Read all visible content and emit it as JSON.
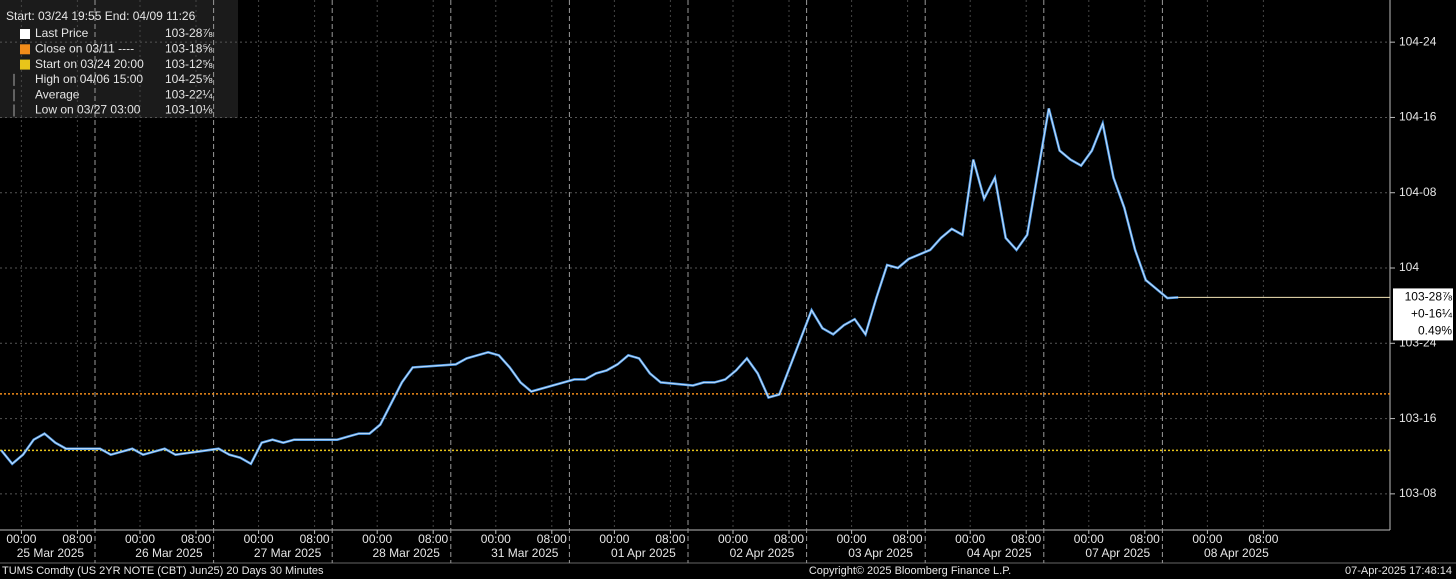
{
  "chart_data": {
    "type": "line",
    "title": "Start: 03/24 19:55 End: 04/09 11:26",
    "color": "#4f9be8",
    "hour_labels": [
      "00:00",
      "08:00"
    ],
    "days": [
      {
        "label": "25 Mar 2025",
        "values": [
          103.394,
          103.35,
          103.38,
          103.43,
          103.45,
          103.42,
          103.4
        ]
      },
      {
        "label": "26 Mar 2025",
        "values": [
          103.4,
          103.38,
          103.39,
          103.4,
          103.38,
          103.39,
          103.4,
          103.38
        ]
      },
      {
        "label": "27 Mar 2025",
        "values": [
          103.4,
          103.38,
          103.37,
          103.35,
          103.42,
          103.43,
          103.42,
          103.43
        ]
      },
      {
        "label": "28 Mar 2025",
        "values": [
          103.43,
          103.44,
          103.45,
          103.45,
          103.48,
          103.55,
          103.62,
          103.67
        ]
      },
      {
        "label": "31 Mar 2025",
        "values": [
          103.68,
          103.7,
          103.71,
          103.72,
          103.71,
          103.67,
          103.62,
          103.59
        ]
      },
      {
        "label": "01 Apr 2025",
        "values": [
          103.63,
          103.63,
          103.65,
          103.66,
          103.68,
          103.71,
          103.7,
          103.65,
          103.62
        ]
      },
      {
        "label": "02 Apr 2025",
        "values": [
          103.61,
          103.62,
          103.62,
          103.63,
          103.66,
          103.7,
          103.65,
          103.57,
          103.58
        ]
      },
      {
        "label": "03 Apr 2025",
        "values": [
          103.86,
          103.8,
          103.78,
          103.81,
          103.83,
          103.78,
          103.9,
          104.01,
          104.0,
          104.03
        ]
      },
      {
        "label": "04 Apr 2025",
        "values": [
          104.06,
          104.1,
          104.13,
          104.11,
          104.36,
          104.23,
          104.3,
          104.1,
          104.06,
          104.11
        ]
      },
      {
        "label": "07 Apr 2025",
        "values": [
          104.53,
          104.39,
          104.36,
          104.34,
          104.39,
          104.48,
          104.3,
          104.2,
          104.06,
          103.96,
          103.93
        ]
      },
      {
        "label": "08 Apr 2025",
        "values": [
          103.9,
          103.90234375
        ]
      }
    ],
    "ylim": [
      103.13,
      104.89
    ],
    "yticks": [
      {
        "value": 103.25,
        "label": "103-08"
      },
      {
        "value": 103.5,
        "label": "103-16"
      },
      {
        "value": 103.75,
        "label": "103-24"
      },
      {
        "value": 104,
        "label": "104"
      },
      {
        "value": 104.25,
        "label": "104-08"
      },
      {
        "value": 104.5,
        "label": "104-16"
      },
      {
        "value": 104.75,
        "label": "104-24"
      }
    ],
    "grid": true,
    "legend": [
      {
        "name": "Last Price",
        "value_label": "103-28⅞",
        "color": "#ffffff"
      },
      {
        "name": "Close on 03/11 ----",
        "value_label": "103-18⅝",
        "color": "#f28c1a",
        "value": 103.58203125
      },
      {
        "name": "Start on 03/24 20:00",
        "value_label": "103-12⅝",
        "color": "#e8c51a",
        "value": 103.39453125
      },
      {
        "name": "High on 04/06 15:00",
        "value_label": "104-25⅝"
      },
      {
        "name": "Average",
        "value_label": "103-22¼"
      },
      {
        "name": "Low on 03/27 03:00",
        "value_label": "103-10⅛"
      }
    ],
    "last": {
      "value": 103.90234375,
      "label": "103-28⅞",
      "change_label": "+0-16¼",
      "pct_label": "0.49%"
    },
    "footer": {
      "left": "TUMS Comdty (US 2YR NOTE (CBT) Jun25) 20 Days 30 Minutes",
      "center": "Copyright© 2025 Bloomberg Finance L.P.",
      "right": "07-Apr-2025 17:48:14"
    }
  }
}
